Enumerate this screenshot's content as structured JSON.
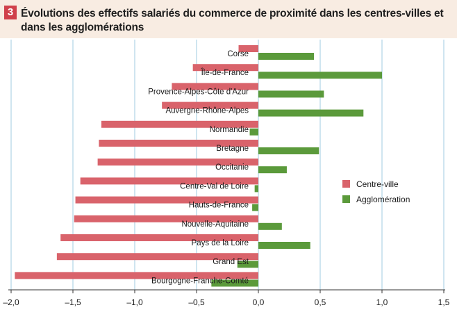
{
  "figure": {
    "number": "3",
    "title": "Évolutions des effectifs salariés du commerce de proximité dans les centres-villes et dans les agglomérations"
  },
  "colors": {
    "centre_ville": "#d9636b",
    "agglomeration": "#5b9a3b",
    "grid": "#9fcbe0",
    "header_bg": "#f8ece2",
    "badge": "#d0404a"
  },
  "chart_data": {
    "type": "bar",
    "orientation": "horizontal",
    "categories": [
      "Corse",
      "Île-de-France",
      "Provence-Alpes-Côte d'Azur",
      "Auvergne-Rhône-Alpes",
      "Normandie",
      "Bretagne",
      "Occitanie",
      "Centre-Val de Loire",
      "Hauts-de-France",
      "Nouvelle-Aquitaine",
      "Pays de la Loire",
      "Grand Est",
      "Bourgogne-Franche-Comté"
    ],
    "series": [
      {
        "name": "Centre-ville",
        "values": [
          -0.16,
          -0.53,
          -0.7,
          -0.78,
          -1.27,
          -1.29,
          -1.3,
          -1.44,
          -1.48,
          -1.49,
          -1.6,
          -1.63,
          -1.97
        ]
      },
      {
        "name": "Agglomération",
        "values": [
          0.45,
          1.0,
          0.53,
          0.85,
          -0.07,
          0.49,
          0.23,
          -0.03,
          -0.05,
          0.19,
          0.42,
          -0.17,
          -0.38
        ]
      }
    ],
    "xlim": [
      -2.0,
      1.5
    ],
    "xticks": [
      "–2,0",
      "–1,5",
      "–1,0",
      "–0,5",
      "0,0",
      "0,5",
      "1,0",
      "1,5"
    ],
    "xtick_values": [
      -2.0,
      -1.5,
      -1.0,
      -0.5,
      0.0,
      0.5,
      1.0,
      1.5
    ],
    "grid": true,
    "legend_position": "right"
  }
}
